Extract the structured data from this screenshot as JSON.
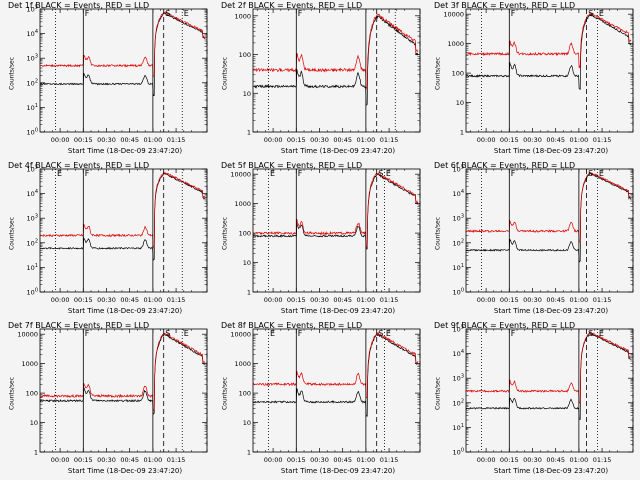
{
  "window": {
    "background": "#f4f4f4"
  },
  "chart_data": [
    {
      "type": "line",
      "title": "Det 1f BLACK = Events, RED = LLD",
      "xlabel": "Start Time (18-Dec-09 23:47:20)",
      "ylabel": "Counts/sec",
      "ylog": true,
      "yticks": [
        "10^0",
        "10^1",
        "10^2",
        "10^3",
        "10^4",
        "10^5"
      ],
      "ylim": [
        1,
        100000
      ],
      "xticks": [
        "00:00",
        "00:15",
        "00:30",
        "00:45",
        "01:00",
        "01:15"
      ],
      "xlim": [
        -13,
        95
      ],
      "markers": [
        {
          "label": "",
          "t": -3,
          "style": "dotted"
        },
        {
          "label": "F",
          "t": 15,
          "style": "solid"
        },
        {
          "label": "",
          "t": 60,
          "style": "solid"
        },
        {
          "label": "S",
          "t": 67,
          "style": "dashed"
        },
        {
          "label": "E",
          "t": 79,
          "style": "dotted"
        },
        {
          "label": "",
          "t": 95,
          "style": "dashed"
        }
      ],
      "series": [
        {
          "name": "Events",
          "color": "#000000",
          "base": 90
        },
        {
          "name": "LLD",
          "color": "#dd0000",
          "base": 500
        }
      ]
    },
    {
      "type": "line",
      "title": "Det 2f BLACK = Events, RED = LLD",
      "xlabel": "Start Time (18-Dec-09 23:47:20)",
      "ylabel": "Counts/sec",
      "ylog": true,
      "yticks": [
        "1",
        "10",
        "100",
        "1000"
      ],
      "ylim": [
        1,
        1500
      ],
      "xticks": [
        "00:00",
        "00:15",
        "00:30",
        "00:45",
        "01:00",
        "01:15"
      ],
      "xlim": [
        -13,
        95
      ],
      "markers": [
        {
          "label": "",
          "t": -3,
          "style": "dotted"
        },
        {
          "label": "F",
          "t": 15,
          "style": "solid"
        },
        {
          "label": "",
          "t": 60,
          "style": "solid"
        },
        {
          "label": "",
          "t": 67,
          "style": "dashed"
        },
        {
          "label": "",
          "t": 79,
          "style": "dotted"
        },
        {
          "label": "",
          "t": 95,
          "style": "dashed"
        }
      ],
      "series": [
        {
          "name": "Events",
          "color": "#000000",
          "base": 15
        },
        {
          "name": "LLD",
          "color": "#dd0000",
          "base": 40
        }
      ]
    },
    {
      "type": "line",
      "title": "Det 3f BLACK = Events, RED = LLD",
      "xlabel": "Start Time (18-Dec-09 23:47:20)",
      "ylabel": "Counts/sec",
      "ylog": true,
      "yticks": [
        "1",
        "10",
        "100",
        "1000",
        "10000"
      ],
      "ylim": [
        1,
        15000
      ],
      "xticks": [
        "00:00",
        "00:15",
        "00:30",
        "00:45",
        "01:00",
        "01:15"
      ],
      "xlim": [
        -13,
        95
      ],
      "markers": [
        {
          "label": "",
          "t": -3,
          "style": "dotted"
        },
        {
          "label": "F",
          "t": 15,
          "style": "solid"
        },
        {
          "label": "S",
          "t": 65,
          "style": "dashed"
        },
        {
          "label": "E",
          "t": 72,
          "style": "dotted"
        },
        {
          "label": "",
          "t": 95,
          "style": "dashed"
        }
      ],
      "series": [
        {
          "name": "Events",
          "color": "#000000",
          "base": 80
        },
        {
          "name": "LLD",
          "color": "#dd0000",
          "base": 450
        }
      ]
    },
    {
      "type": "line",
      "title": "Det 4f BLACK = Events, RED = LLD",
      "xlabel": "Start Time (18-Dec-09 23:47:20)",
      "ylabel": "Counts/sec",
      "ylog": true,
      "yticks": [
        "10^0",
        "10^1",
        "10^2",
        "10^3",
        "10^4",
        "10^5"
      ],
      "ylim": [
        1,
        100000
      ],
      "xticks": [
        "00:00",
        "00:15",
        "00:30",
        "00:45",
        "01:00",
        "01:15"
      ],
      "xlim": [
        -13,
        95
      ],
      "markers": [
        {
          "label": "E",
          "t": -3,
          "style": "dotted"
        },
        {
          "label": "F",
          "t": 15,
          "style": "solid"
        },
        {
          "label": "",
          "t": 60,
          "style": "solid"
        },
        {
          "label": "",
          "t": 67,
          "style": "dashed"
        },
        {
          "label": "",
          "t": 79,
          "style": "dotted"
        },
        {
          "label": "",
          "t": 95,
          "style": "dashed"
        }
      ],
      "series": [
        {
          "name": "Events",
          "color": "#000000",
          "base": 60
        },
        {
          "name": "LLD",
          "color": "#dd0000",
          "base": 200
        }
      ]
    },
    {
      "type": "line",
      "title": "Det 5f BLACK = Events, RED = LLD",
      "xlabel": "Start Time (18-Dec-09 23:47:20)",
      "ylabel": "Counts/sec",
      "ylog": true,
      "yticks": [
        "1",
        "10",
        "100",
        "1000",
        "10000"
      ],
      "ylim": [
        1,
        15000
      ],
      "xticks": [
        "00:00",
        "00:15",
        "00:30",
        "00:45",
        "01:00",
        "01:15"
      ],
      "xlim": [
        -13,
        95
      ],
      "markers": [
        {
          "label": "E",
          "t": -3,
          "style": "dotted"
        },
        {
          "label": "F",
          "t": 15,
          "style": "solid"
        },
        {
          "label": "",
          "t": 60,
          "style": "solid"
        },
        {
          "label": "S",
          "t": 67,
          "style": "dashed"
        },
        {
          "label": "E",
          "t": 72,
          "style": "dotted"
        },
        {
          "label": "",
          "t": 95,
          "style": "dashed"
        }
      ],
      "series": [
        {
          "name": "Events",
          "color": "#000000",
          "base": 80
        },
        {
          "name": "LLD",
          "color": "#dd0000",
          "base": 100
        }
      ]
    },
    {
      "type": "line",
      "title": "Det 6f BLACK = Events, RED = LLD",
      "xlabel": "Start Time (18-Dec-09 23:47:20)",
      "ylabel": "Counts/sec",
      "ylog": true,
      "yticks": [
        "10^0",
        "10^1",
        "10^2",
        "10^3",
        "10^4",
        "10^5"
      ],
      "ylim": [
        1,
        100000
      ],
      "xticks": [
        "00:00",
        "00:15",
        "00:30",
        "00:45",
        "01:00",
        "01:15"
      ],
      "xlim": [
        -13,
        95
      ],
      "markers": [
        {
          "label": "",
          "t": -3,
          "style": "dotted"
        },
        {
          "label": "F",
          "t": 15,
          "style": "solid"
        },
        {
          "label": "",
          "t": 60,
          "style": "solid"
        },
        {
          "label": "S",
          "t": 65,
          "style": "dashed"
        },
        {
          "label": "E",
          "t": 72,
          "style": "dotted"
        },
        {
          "label": "",
          "t": 95,
          "style": "dashed"
        }
      ],
      "series": [
        {
          "name": "Events",
          "color": "#000000",
          "base": 50
        },
        {
          "name": "LLD",
          "color": "#dd0000",
          "base": 300
        }
      ]
    },
    {
      "type": "line",
      "title": "Det 7f BLACK = Events, RED = LLD",
      "xlabel": "Start Time (18-Dec-09 23:47:20)",
      "ylabel": "Counts/sec",
      "ylog": true,
      "yticks": [
        "1",
        "10",
        "100",
        "1000",
        "10000"
      ],
      "ylim": [
        1,
        15000
      ],
      "xticks": [
        "00:00",
        "00:15",
        "00:30",
        "00:45",
        "01:00",
        "01:15"
      ],
      "xlim": [
        -13,
        95
      ],
      "markers": [
        {
          "label": "",
          "t": -3,
          "style": "dotted"
        },
        {
          "label": "F",
          "t": 15,
          "style": "solid"
        },
        {
          "label": "",
          "t": 60,
          "style": "solid"
        },
        {
          "label": "S",
          "t": 67,
          "style": "dashed"
        },
        {
          "label": "E",
          "t": 79,
          "style": "dotted"
        },
        {
          "label": "",
          "t": 95,
          "style": "dashed"
        }
      ],
      "series": [
        {
          "name": "Events",
          "color": "#000000",
          "base": 55
        },
        {
          "name": "LLD",
          "color": "#dd0000",
          "base": 80
        }
      ]
    },
    {
      "type": "line",
      "title": "Det 8f BLACK = Events, RED = LLD",
      "xlabel": "Start Time (18-Dec-09 23:47:20)",
      "ylabel": "Counts/sec",
      "ylog": true,
      "yticks": [
        "1",
        "10",
        "100",
        "1000",
        "10000"
      ],
      "ylim": [
        1,
        15000
      ],
      "xticks": [
        "00:00",
        "00:15",
        "00:30",
        "00:45",
        "01:00",
        "01:15"
      ],
      "xlim": [
        -13,
        95
      ],
      "markers": [
        {
          "label": "E",
          "t": -3,
          "style": "dotted"
        },
        {
          "label": "F",
          "t": 15,
          "style": "solid"
        },
        {
          "label": "",
          "t": 60,
          "style": "solid"
        },
        {
          "label": "S",
          "t": 67,
          "style": "dashed"
        },
        {
          "label": "E",
          "t": 72,
          "style": "dotted"
        },
        {
          "label": "",
          "t": 95,
          "style": "dashed"
        }
      ],
      "series": [
        {
          "name": "Events",
          "color": "#000000",
          "base": 50
        },
        {
          "name": "LLD",
          "color": "#dd0000",
          "base": 200
        }
      ]
    },
    {
      "type": "line",
      "title": "Det 9f BLACK = Events, RED = LLD",
      "xlabel": "Start Time (18-Dec-09 23:47:20)",
      "ylabel": "Counts/sec",
      "ylog": true,
      "yticks": [
        "10^0",
        "10^1",
        "10^2",
        "10^3",
        "10^4",
        "10^5"
      ],
      "ylim": [
        1,
        100000
      ],
      "xticks": [
        "00:00",
        "00:15",
        "00:30",
        "00:45",
        "01:00",
        "01:15"
      ],
      "xlim": [
        -13,
        95
      ],
      "markers": [
        {
          "label": "",
          "t": -3,
          "style": "dotted"
        },
        {
          "label": "F",
          "t": 15,
          "style": "solid"
        },
        {
          "label": "",
          "t": 60,
          "style": "solid"
        },
        {
          "label": "S",
          "t": 65,
          "style": "dashed"
        },
        {
          "label": "E",
          "t": 72,
          "style": "dotted"
        },
        {
          "label": "",
          "t": 95,
          "style": "dashed"
        }
      ],
      "series": [
        {
          "name": "Events",
          "color": "#000000",
          "base": 60
        },
        {
          "name": "LLD",
          "color": "#dd0000",
          "base": 300
        }
      ]
    }
  ]
}
